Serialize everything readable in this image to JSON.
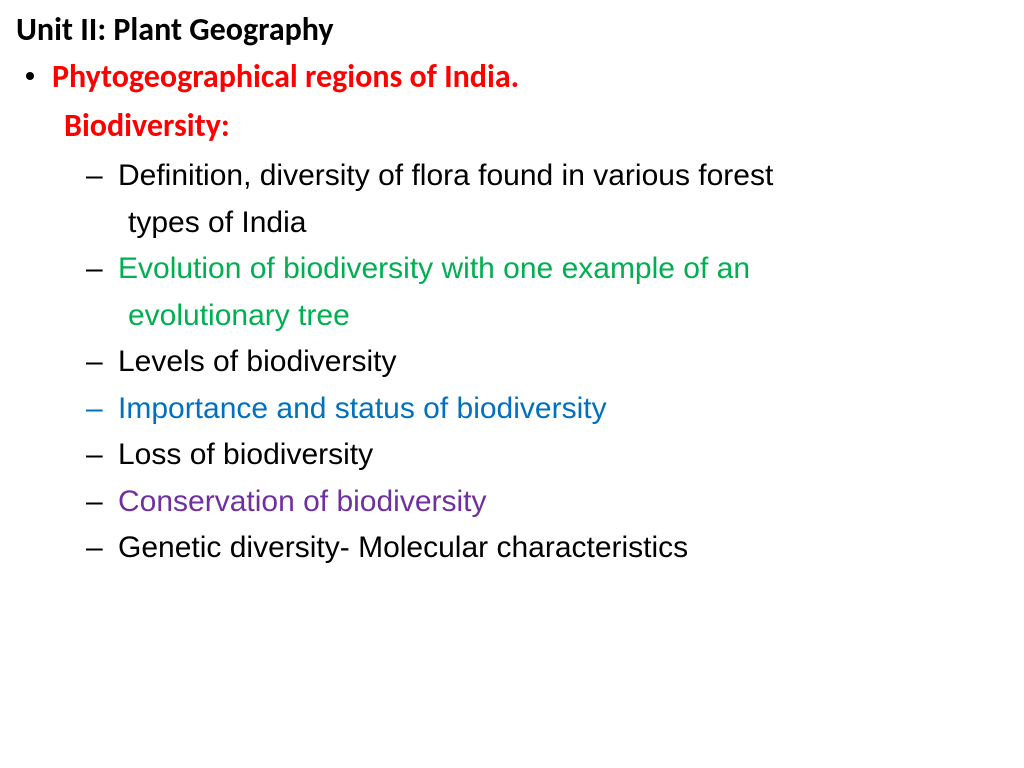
{
  "colors": {
    "title": "#000000",
    "red": "#ff0000",
    "black": "#000000",
    "green": "#00b050",
    "blue": "#0070c0",
    "purple": "#7030a0",
    "background": "#ffffff"
  },
  "typography": {
    "title_font": "Calibri",
    "body_font": "Arial",
    "title_size_pt": 24,
    "body_size_pt": 22
  },
  "title": "Unit II: Plant Geography",
  "level1": {
    "text": "Phytogeographical regions of India."
  },
  "subheading": "Biodiversity:",
  "items": [
    {
      "line1": "Definition, diversity of flora found in various forest",
      "line2": "types of India",
      "color": "black"
    },
    {
      "line1": "Evolution of biodiversity with one example of an",
      "line2": "evolutionary tree",
      "color": "green"
    },
    {
      "line1": "Levels of biodiversity",
      "color": "black"
    },
    {
      "line1": "Importance and status of biodiversity",
      "color": "blue"
    },
    {
      "line1": "Loss of biodiversity",
      "color": "black"
    },
    {
      "line1": "Conservation of biodiversity",
      "color": "purple"
    },
    {
      "line1": "Genetic diversity- Molecular characteristics",
      "color": "black"
    }
  ]
}
